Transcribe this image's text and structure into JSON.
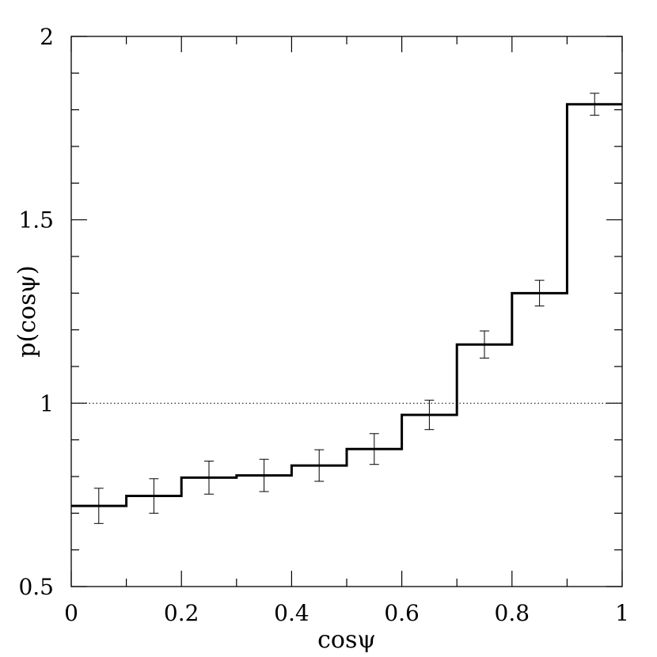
{
  "chart_data": {
    "type": "histogram",
    "xlabel": "cosψ",
    "ylabel": "p(cosψ)",
    "xlim": [
      0,
      1
    ],
    "ylim": [
      0.5,
      2
    ],
    "x_ticks": [
      "0",
      "0.2",
      "0.4",
      "0.6",
      "0.8",
      "1"
    ],
    "y_ticks": [
      "0.5",
      "1",
      "1.5",
      "2"
    ],
    "bin_edges": [
      0,
      0.1,
      0.2,
      0.3,
      0.4,
      0.5,
      0.6,
      0.7,
      0.8,
      0.9,
      1.0
    ],
    "bin_centers": [
      0.05,
      0.15,
      0.25,
      0.35,
      0.45,
      0.55,
      0.65,
      0.75,
      0.85,
      0.95
    ],
    "values": [
      0.72,
      0.747,
      0.797,
      0.803,
      0.83,
      0.875,
      0.968,
      1.16,
      1.3,
      1.815
    ],
    "errors": [
      0.048,
      0.047,
      0.045,
      0.044,
      0.043,
      0.042,
      0.04,
      0.037,
      0.035,
      0.03
    ],
    "reference_line": {
      "y": 1.0,
      "style": "dotted"
    },
    "grid": false
  }
}
